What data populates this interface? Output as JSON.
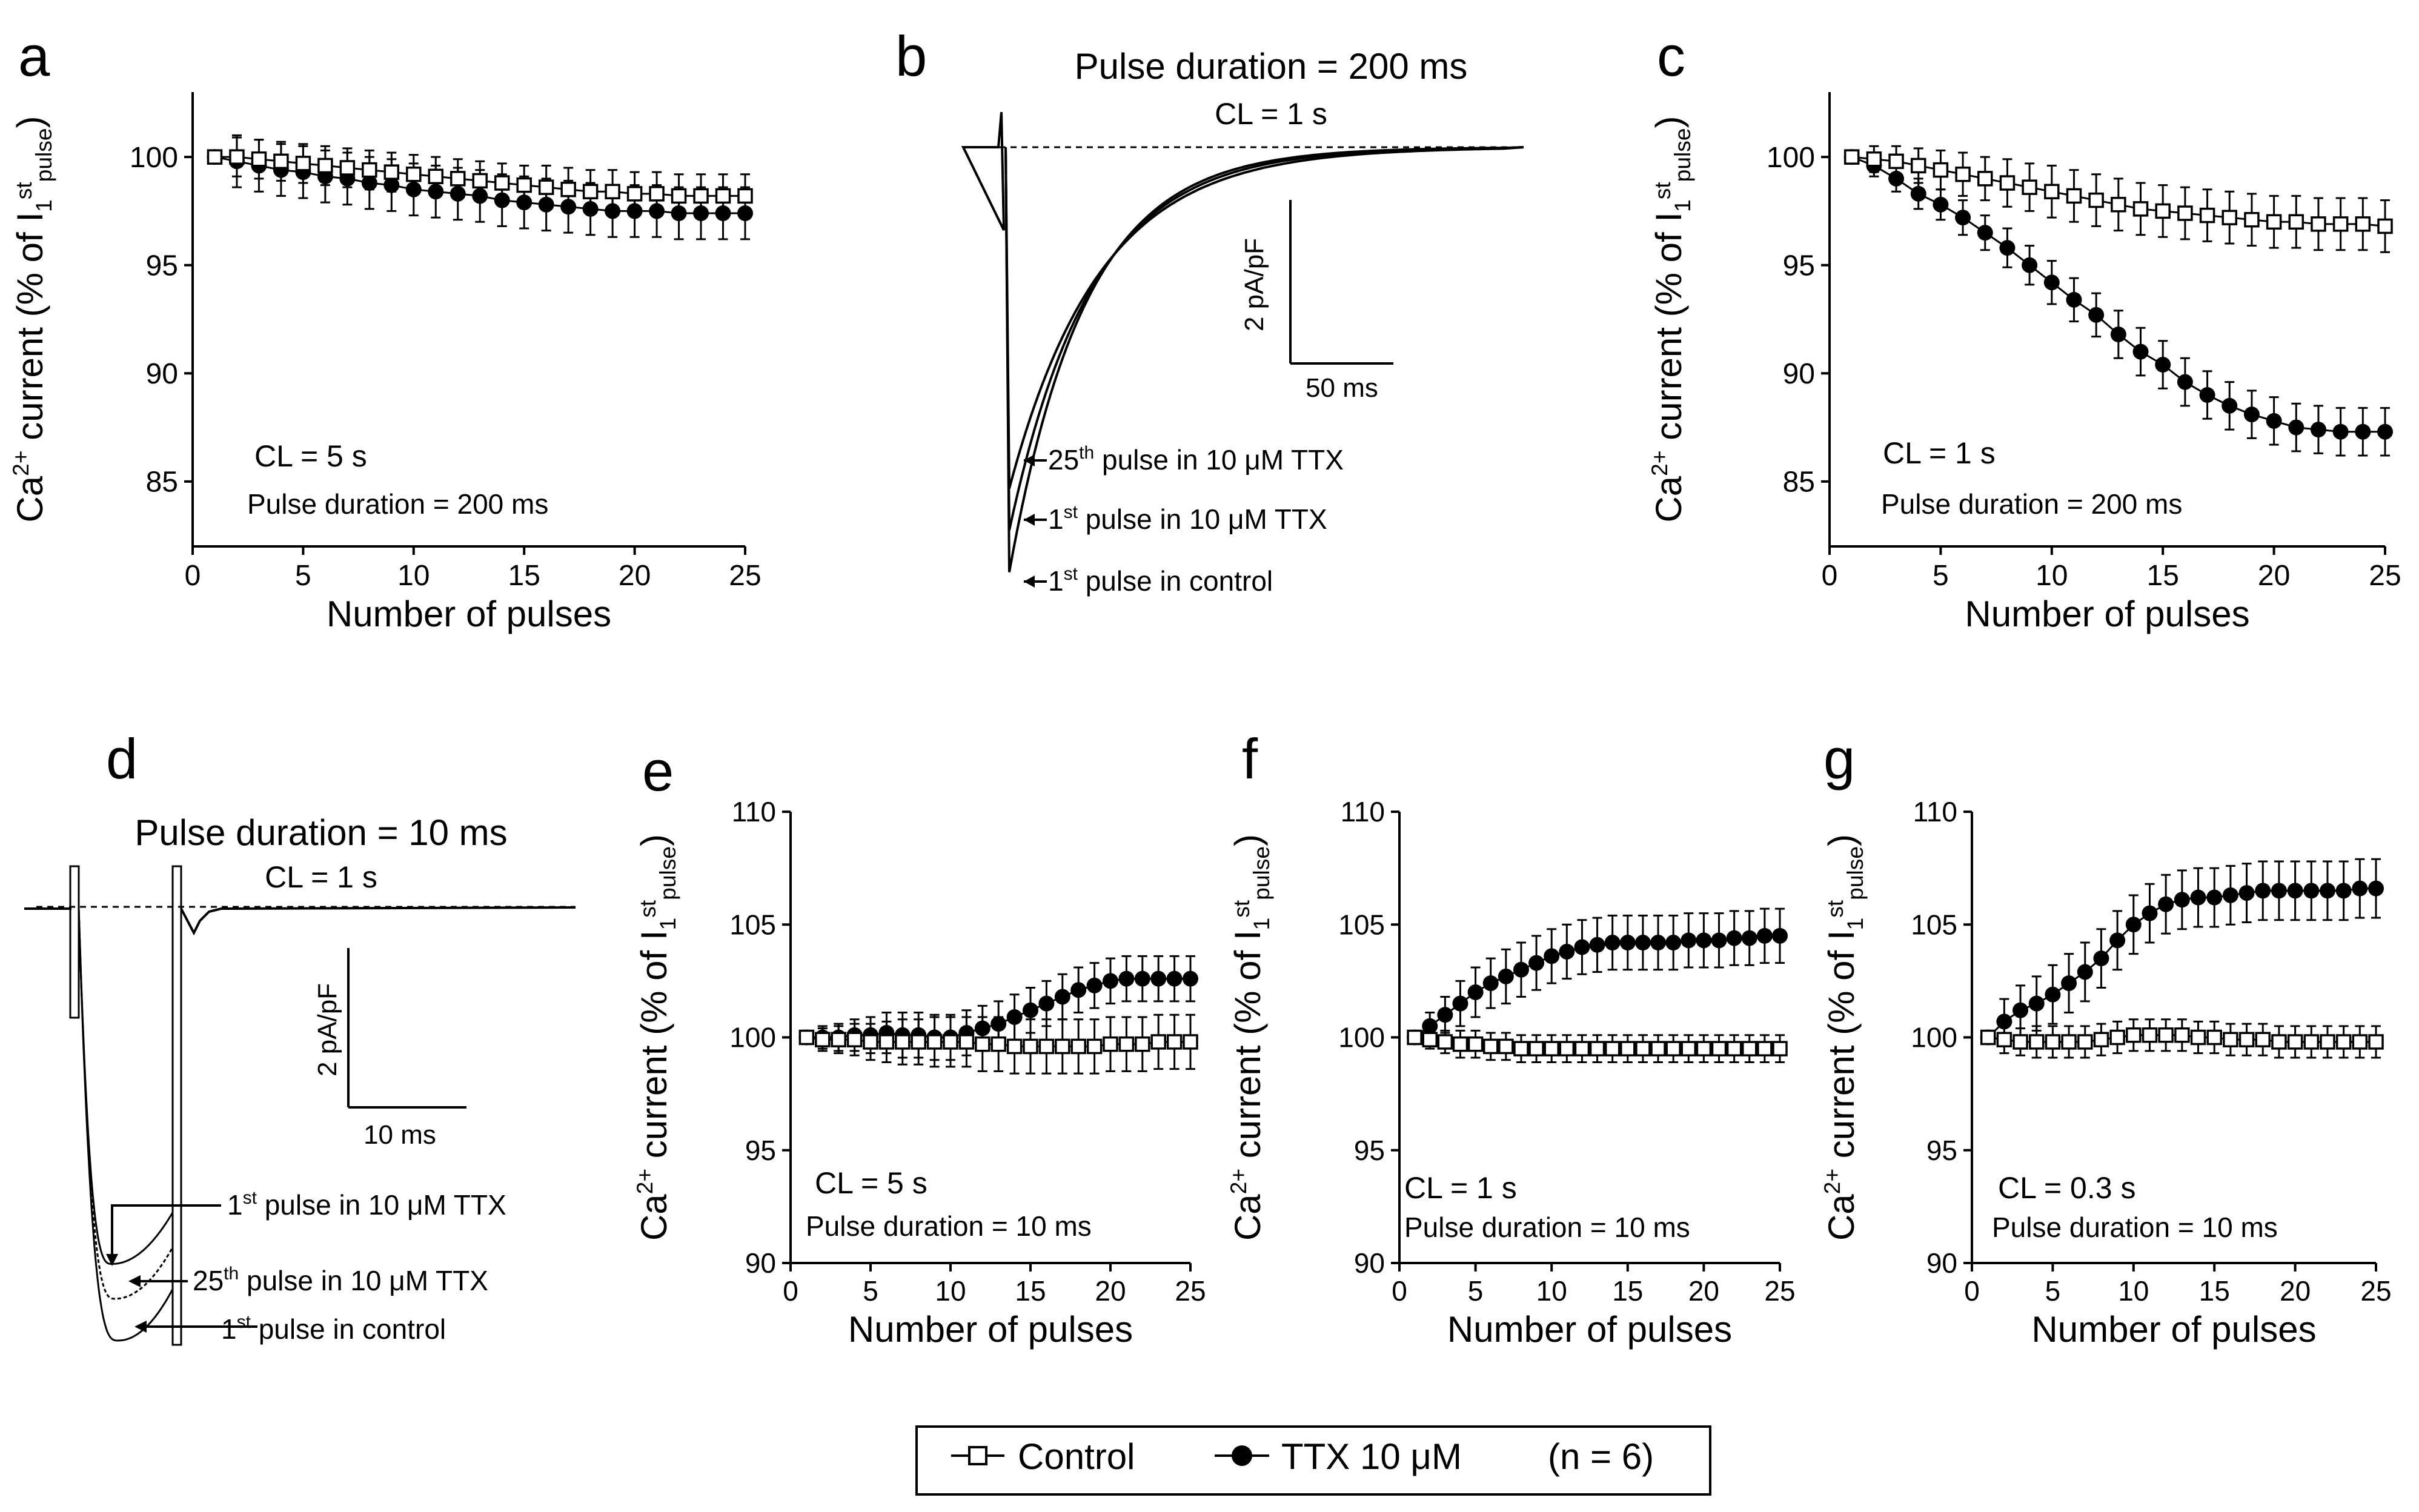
{
  "colors": {
    "ink": "#000000",
    "background": "#ffffff",
    "open_fill": "#ffffff"
  },
  "panels_letters": {
    "a": "a",
    "b": "b",
    "c": "c",
    "d": "d",
    "e": "e",
    "f": "f",
    "g": "g"
  },
  "common": {
    "ylabel_main": "Ca",
    "ylabel_sup": "2+",
    "ylabel_mid": " current (% of I",
    "ylabel_sub1": "1",
    "ylabel_st": "st",
    "ylabel_sub2": "pulse",
    "ylabel_close": ")",
    "xlabel": "Number of pulses"
  },
  "legend": {
    "control_label": "Control",
    "ttx_label": "TTX 10 μM",
    "n_label": "(n = 6)"
  },
  "chart_data": [
    {
      "panel": "a",
      "type": "scatter",
      "xlabel": "Number of pulses",
      "ylabel": "Ca2+ current (% of I1st pulse)",
      "xlim": [
        0,
        25
      ],
      "ylim": [
        82,
        103
      ],
      "xticks": [
        0,
        5,
        10,
        15,
        20,
        25
      ],
      "yticks": [
        85,
        90,
        95,
        100
      ],
      "annotations": [
        "CL = 5 s",
        "Pulse duration = 200 ms"
      ],
      "x": [
        1,
        2,
        3,
        4,
        5,
        6,
        7,
        8,
        9,
        10,
        11,
        12,
        13,
        14,
        15,
        16,
        17,
        18,
        19,
        20,
        21,
        22,
        23,
        24,
        25
      ],
      "series": [
        {
          "name": "Control",
          "marker": "open-square",
          "values": [
            100,
            100,
            99.9,
            99.8,
            99.7,
            99.6,
            99.5,
            99.4,
            99.3,
            99.2,
            99.1,
            99.0,
            98.9,
            98.8,
            98.7,
            98.6,
            98.5,
            98.4,
            98.4,
            98.3,
            98.3,
            98.2,
            98.2,
            98.2,
            98.2
          ],
          "err": [
            0,
            0.9,
            0.9,
            0.9,
            0.9,
            0.9,
            0.9,
            0.9,
            0.9,
            0.9,
            0.9,
            0.9,
            0.9,
            0.9,
            0.9,
            1.0,
            1.0,
            1.0,
            1.0,
            1.0,
            1.0,
            1.0,
            1.0,
            1.0,
            1.0
          ]
        },
        {
          "name": "TTX 10 μM",
          "marker": "filled-circle",
          "values": [
            100,
            99.8,
            99.6,
            99.4,
            99.3,
            99.1,
            99.0,
            98.8,
            98.7,
            98.5,
            98.4,
            98.3,
            98.2,
            98.0,
            97.9,
            97.8,
            97.7,
            97.6,
            97.5,
            97.5,
            97.5,
            97.4,
            97.4,
            97.4,
            97.4
          ],
          "err": [
            0,
            1.2,
            1.2,
            1.2,
            1.2,
            1.2,
            1.2,
            1.2,
            1.2,
            1.2,
            1.2,
            1.2,
            1.2,
            1.2,
            1.2,
            1.2,
            1.2,
            1.2,
            1.2,
            1.2,
            1.2,
            1.2,
            1.2,
            1.2,
            1.2
          ]
        }
      ]
    },
    {
      "panel": "b",
      "type": "line",
      "title": "Pulse duration = 200 ms",
      "subtitle": "CL = 1 s",
      "scale_y": "2 pA/pF",
      "scale_x": "50 ms",
      "trace_labels": {
        "t25_pre": "25",
        "t25_sup": "th",
        "t25_post": " pulse in 10 μM TTX",
        "t1_pre": "1",
        "t1_sup": "st",
        "t1_post": " pulse in 10 μM TTX",
        "tc_pre": "1",
        "tc_sup": "st",
        "tc_post": " pulse in control"
      },
      "traces": [
        {
          "name": "25th pulse in 10 μM TTX",
          "peak_pA_pF": -4.9,
          "tau_ms": 44
        },
        {
          "name": "1st pulse in 10 μM TTX",
          "peak_pA_pF": -5.5,
          "tau_ms": 40
        },
        {
          "name": "1st pulse in control",
          "peak_pA_pF": -6.1,
          "tau_ms": 37
        }
      ]
    },
    {
      "panel": "c",
      "type": "scatter",
      "xlabel": "Number of pulses",
      "ylabel": "Ca2+ current (% of I1st pulse)",
      "xlim": [
        0,
        25
      ],
      "ylim": [
        82,
        103
      ],
      "xticks": [
        0,
        5,
        10,
        15,
        20,
        25
      ],
      "yticks": [
        85,
        90,
        95,
        100
      ],
      "annotations": [
        "CL = 1 s",
        "Pulse duration = 200 ms"
      ],
      "x": [
        1,
        2,
        3,
        4,
        5,
        6,
        7,
        8,
        9,
        10,
        11,
        12,
        13,
        14,
        15,
        16,
        17,
        18,
        19,
        20,
        21,
        22,
        23,
        24,
        25
      ],
      "series": [
        {
          "name": "Control",
          "marker": "open-square",
          "values": [
            100,
            99.9,
            99.8,
            99.6,
            99.4,
            99.2,
            99.0,
            98.8,
            98.6,
            98.4,
            98.2,
            98.0,
            97.8,
            97.6,
            97.5,
            97.4,
            97.3,
            97.2,
            97.1,
            97.0,
            97.0,
            96.9,
            96.9,
            96.9,
            96.8
          ],
          "err": [
            0,
            0.6,
            0.7,
            0.8,
            0.9,
            1.0,
            1.0,
            1.1,
            1.1,
            1.2,
            1.2,
            1.2,
            1.2,
            1.2,
            1.2,
            1.2,
            1.2,
            1.2,
            1.2,
            1.2,
            1.2,
            1.2,
            1.2,
            1.2,
            1.2
          ]
        },
        {
          "name": "TTX 10 μM",
          "marker": "filled-circle",
          "values": [
            100,
            99.6,
            99.0,
            98.3,
            97.8,
            97.2,
            96.5,
            95.8,
            95.0,
            94.2,
            93.4,
            92.7,
            91.8,
            91.0,
            90.4,
            89.6,
            89.0,
            88.5,
            88.1,
            87.8,
            87.5,
            87.4,
            87.3,
            87.3,
            87.3
          ],
          "err": [
            0,
            0.5,
            0.6,
            0.7,
            0.7,
            0.8,
            0.8,
            0.9,
            0.9,
            1.0,
            1.0,
            1.0,
            1.1,
            1.1,
            1.1,
            1.1,
            1.1,
            1.1,
            1.1,
            1.1,
            1.1,
            1.1,
            1.1,
            1.1,
            1.1
          ]
        }
      ]
    },
    {
      "panel": "d",
      "type": "line",
      "title": "Pulse duration = 10 ms",
      "subtitle": "CL = 1 s",
      "scale_y": "2 pA/pF",
      "scale_x": "10 ms",
      "trace_labels": {
        "t1_pre": "1",
        "t1_sup": "st",
        "t1_post": " pulse in 10 μM TTX",
        "t25_pre": "25",
        "t25_sup": "th",
        "t25_post": " pulse in 10 μM TTX",
        "tc_pre": "1",
        "tc_sup": "st",
        "tc_post": " pulse in control"
      },
      "traces": [
        {
          "name": "1st pulse in 10 μM TTX",
          "peak_pA_pF": -5.1
        },
        {
          "name": "25th pulse in 10 μM TTX",
          "peak_pA_pF": -5.6
        },
        {
          "name": "1st pulse in control",
          "peak_pA_pF": -6.2
        }
      ]
    },
    {
      "panel": "e",
      "type": "scatter",
      "xlabel": "Number of pulses",
      "ylabel": "Ca2+ current (% of I1st pulse)",
      "xlim": [
        0,
        25
      ],
      "ylim": [
        90,
        110
      ],
      "xticks": [
        0,
        5,
        10,
        15,
        20,
        25
      ],
      "yticks": [
        90,
        95,
        100,
        105,
        110
      ],
      "annotations": [
        "CL = 5 s",
        "Pulse duration = 10 ms"
      ],
      "x": [
        1,
        2,
        3,
        4,
        5,
        6,
        7,
        8,
        9,
        10,
        11,
        12,
        13,
        14,
        15,
        16,
        17,
        18,
        19,
        20,
        21,
        22,
        23,
        24,
        25
      ],
      "series": [
        {
          "name": "Control",
          "marker": "open-square",
          "values": [
            100,
            99.9,
            99.9,
            99.9,
            99.8,
            99.8,
            99.8,
            99.8,
            99.8,
            99.8,
            99.8,
            99.7,
            99.7,
            99.6,
            99.6,
            99.6,
            99.6,
            99.6,
            99.6,
            99.7,
            99.7,
            99.7,
            99.8,
            99.8,
            99.8
          ],
          "err": [
            0,
            0.5,
            0.6,
            0.7,
            0.8,
            0.9,
            1.0,
            1.0,
            1.1,
            1.1,
            1.1,
            1.2,
            1.2,
            1.2,
            1.2,
            1.2,
            1.2,
            1.2,
            1.2,
            1.2,
            1.2,
            1.2,
            1.2,
            1.2,
            1.2
          ]
        },
        {
          "name": "TTX 10 μM",
          "marker": "filled-circle",
          "values": [
            100,
            100.0,
            100.0,
            100.1,
            100.1,
            100.2,
            100.1,
            100.1,
            100.0,
            100.0,
            100.2,
            100.4,
            100.6,
            100.9,
            101.2,
            101.5,
            101.8,
            102.1,
            102.3,
            102.5,
            102.6,
            102.6,
            102.6,
            102.6,
            102.6
          ],
          "err": [
            0,
            0.5,
            0.6,
            0.7,
            0.8,
            0.9,
            1.0,
            1.0,
            1.0,
            1.0,
            1.0,
            1.0,
            1.0,
            1.0,
            1.0,
            1.0,
            1.0,
            1.0,
            1.0,
            1.0,
            1.0,
            1.0,
            1.0,
            1.0,
            1.0
          ]
        }
      ]
    },
    {
      "panel": "f",
      "type": "scatter",
      "xlabel": "Number of pulses",
      "ylabel": "Ca2+ current (% of I1st pulse)",
      "xlim": [
        0,
        25
      ],
      "ylim": [
        90,
        110
      ],
      "xticks": [
        0,
        5,
        10,
        15,
        20,
        25
      ],
      "yticks": [
        90,
        95,
        100,
        105,
        110
      ],
      "annotations": [
        "CL = 1 s",
        "Pulse duration = 10 ms"
      ],
      "x": [
        1,
        2,
        3,
        4,
        5,
        6,
        7,
        8,
        9,
        10,
        11,
        12,
        13,
        14,
        15,
        16,
        17,
        18,
        19,
        20,
        21,
        22,
        23,
        24,
        25
      ],
      "series": [
        {
          "name": "Control",
          "marker": "open-square",
          "values": [
            100,
            99.9,
            99.8,
            99.7,
            99.7,
            99.6,
            99.6,
            99.5,
            99.5,
            99.5,
            99.5,
            99.5,
            99.5,
            99.5,
            99.5,
            99.5,
            99.5,
            99.5,
            99.5,
            99.5,
            99.5,
            99.5,
            99.5,
            99.5,
            99.5
          ],
          "err": [
            0,
            0.4,
            0.5,
            0.6,
            0.6,
            0.6,
            0.6,
            0.6,
            0.6,
            0.6,
            0.6,
            0.6,
            0.6,
            0.6,
            0.6,
            0.6,
            0.6,
            0.6,
            0.6,
            0.6,
            0.6,
            0.6,
            0.6,
            0.6,
            0.6
          ]
        },
        {
          "name": "TTX 10 μM",
          "marker": "filled-circle",
          "values": [
            100,
            100.5,
            101.0,
            101.5,
            102.0,
            102.4,
            102.7,
            103.0,
            103.3,
            103.6,
            103.8,
            104.0,
            104.1,
            104.2,
            104.2,
            104.2,
            104.2,
            104.2,
            104.3,
            104.3,
            104.3,
            104.4,
            104.4,
            104.5,
            104.5
          ],
          "err": [
            0,
            0.6,
            0.8,
            1.0,
            1.1,
            1.1,
            1.2,
            1.2,
            1.2,
            1.2,
            1.2,
            1.2,
            1.2,
            1.2,
            1.2,
            1.2,
            1.2,
            1.2,
            1.2,
            1.2,
            1.2,
            1.2,
            1.2,
            1.2,
            1.2
          ]
        }
      ]
    },
    {
      "panel": "g",
      "type": "scatter",
      "xlabel": "Number of pulses",
      "ylabel": "Ca2+ current (% of I1st pulse)",
      "xlim": [
        0,
        25
      ],
      "ylim": [
        90,
        110
      ],
      "xticks": [
        0,
        5,
        10,
        15,
        20,
        25
      ],
      "yticks": [
        90,
        95,
        100,
        105,
        110
      ],
      "annotations": [
        "CL = 0.3 s",
        "Pulse duration = 10 ms"
      ],
      "x": [
        1,
        2,
        3,
        4,
        5,
        6,
        7,
        8,
        9,
        10,
        11,
        12,
        13,
        14,
        15,
        16,
        17,
        18,
        19,
        20,
        21,
        22,
        23,
        24,
        25
      ],
      "series": [
        {
          "name": "Control",
          "marker": "open-square",
          "values": [
            100,
            99.9,
            99.8,
            99.8,
            99.8,
            99.8,
            99.8,
            99.9,
            100.0,
            100.1,
            100.1,
            100.1,
            100.1,
            100.0,
            100.0,
            99.9,
            99.9,
            99.9,
            99.8,
            99.8,
            99.8,
            99.8,
            99.8,
            99.8,
            99.8
          ],
          "err": [
            0,
            0.6,
            0.6,
            0.7,
            0.7,
            0.7,
            0.7,
            0.7,
            0.7,
            0.7,
            0.7,
            0.7,
            0.7,
            0.7,
            0.7,
            0.7,
            0.7,
            0.7,
            0.7,
            0.7,
            0.7,
            0.7,
            0.7,
            0.7,
            0.7
          ]
        },
        {
          "name": "TTX 10 μM",
          "marker": "filled-circle",
          "values": [
            100,
            100.7,
            101.2,
            101.5,
            101.9,
            102.4,
            102.9,
            103.5,
            104.3,
            105.0,
            105.5,
            105.9,
            106.1,
            106.2,
            106.2,
            106.3,
            106.4,
            106.5,
            106.5,
            106.5,
            106.5,
            106.5,
            106.5,
            106.6,
            106.6
          ],
          "err": [
            0,
            1.0,
            1.1,
            1.2,
            1.3,
            1.3,
            1.3,
            1.3,
            1.3,
            1.3,
            1.3,
            1.3,
            1.3,
            1.3,
            1.3,
            1.3,
            1.3,
            1.3,
            1.3,
            1.3,
            1.3,
            1.3,
            1.3,
            1.3,
            1.3
          ]
        }
      ]
    }
  ]
}
